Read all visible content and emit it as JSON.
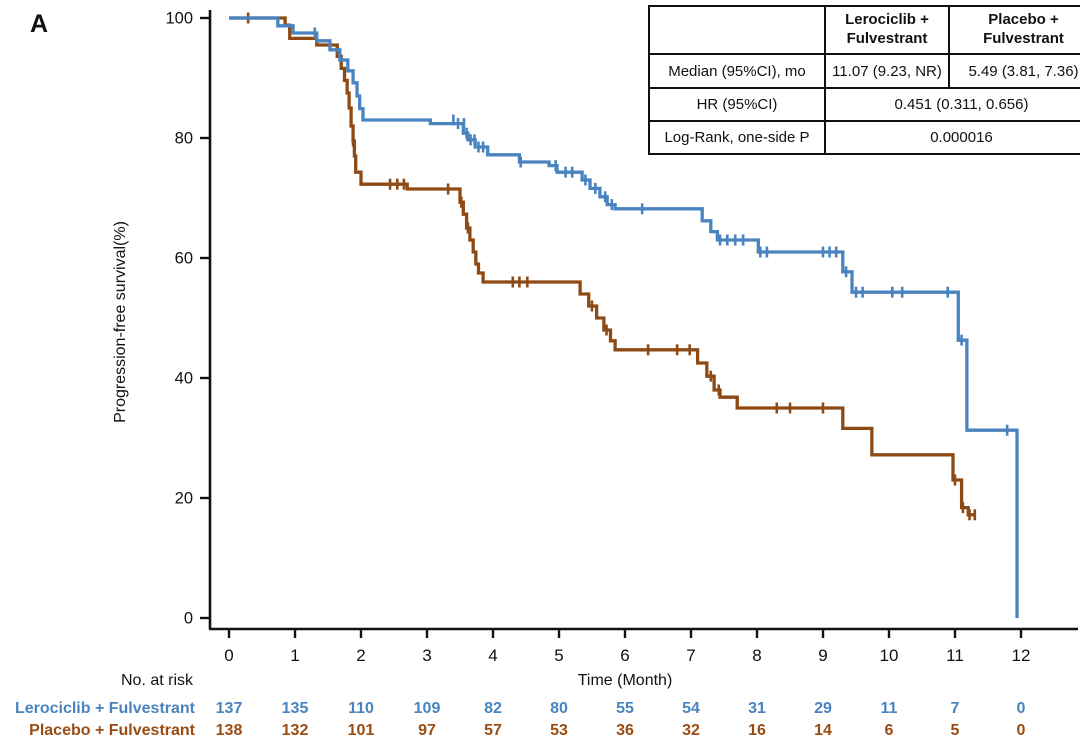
{
  "panel_label": "A",
  "colors": {
    "lerociclib_blue": "#4a84c0",
    "placebo_brown": "#8e4a15",
    "axis_black": "#111111"
  },
  "stats_table": {
    "header": {
      "blank": "",
      "col1": "Lerociclib +\nFulvestrant",
      "col2": "Placebo +\nFulvestrant"
    },
    "median_row": {
      "label": "Median (95%CI), mo",
      "lerociclib": "11.07 (9.23, NR)",
      "placebo": "5.49 (3.81, 7.36)"
    },
    "hr_row": {
      "label": "HR (95%CI)",
      "value": "0.451 (0.311, 0.656)"
    },
    "logrank_row": {
      "label": "Log-Rank, one-side P",
      "value": "0.000016"
    }
  },
  "chart_data": {
    "type": "line",
    "subtype": "kaplan-meier-step",
    "title": "",
    "xlabel": "Time (Month)",
    "ylabel": "Progression-free survival(%)",
    "xlim": [
      0,
      12
    ],
    "ylim": [
      0,
      100
    ],
    "x_ticks": [
      0,
      1,
      2,
      3,
      4,
      5,
      6,
      7,
      8,
      9,
      10,
      11,
      12
    ],
    "y_ticks": [
      0,
      20,
      40,
      60,
      80,
      100
    ],
    "grid": false,
    "legend_position": "none",
    "series": [
      {
        "name": "Placebo + Fulvestrant",
        "color": "#8e4a15",
        "end_month": 11.32,
        "steps": [
          [
            0,
            100
          ],
          [
            0.85,
            98.8
          ],
          [
            0.92,
            96.6
          ],
          [
            1.33,
            95.5
          ],
          [
            1.64,
            93.6
          ],
          [
            1.7,
            91.6
          ],
          [
            1.75,
            89.6
          ],
          [
            1.79,
            87.5
          ],
          [
            1.82,
            85
          ],
          [
            1.85,
            82
          ],
          [
            1.88,
            79.5
          ],
          [
            1.9,
            77
          ],
          [
            1.92,
            74.3
          ],
          [
            2.0,
            72.3
          ],
          [
            2.7,
            71.5
          ],
          [
            3.5,
            69.3
          ],
          [
            3.55,
            67.3
          ],
          [
            3.6,
            65
          ],
          [
            3.65,
            63
          ],
          [
            3.7,
            61
          ],
          [
            3.74,
            59
          ],
          [
            3.78,
            57.5
          ],
          [
            3.85,
            56
          ],
          [
            5.32,
            54
          ],
          [
            5.45,
            52
          ],
          [
            5.57,
            50
          ],
          [
            5.68,
            48
          ],
          [
            5.78,
            46.2
          ],
          [
            5.85,
            44.7
          ],
          [
            7.1,
            42.5
          ],
          [
            7.24,
            40.3
          ],
          [
            7.35,
            38
          ],
          [
            7.44,
            36.8
          ],
          [
            7.7,
            35
          ],
          [
            9.3,
            31.6
          ],
          [
            9.74,
            27.2
          ],
          [
            10.97,
            23
          ],
          [
            11.1,
            18.4
          ],
          [
            11.2,
            17.2
          ]
        ],
        "censors": [
          [
            0.29,
            100
          ],
          [
            1.88,
            79.5
          ],
          [
            2.44,
            72.3
          ],
          [
            2.55,
            72.3
          ],
          [
            2.65,
            72.3
          ],
          [
            3.32,
            71.5
          ],
          [
            3.52,
            69.3
          ],
          [
            3.62,
            65
          ],
          [
            4.3,
            56
          ],
          [
            4.4,
            56
          ],
          [
            4.52,
            56
          ],
          [
            5.5,
            52
          ],
          [
            5.72,
            48
          ],
          [
            6.35,
            44.7
          ],
          [
            6.79,
            44.7
          ],
          [
            6.98,
            44.7
          ],
          [
            7.3,
            40.3
          ],
          [
            7.42,
            38
          ],
          [
            8.3,
            35
          ],
          [
            8.5,
            35
          ],
          [
            9.0,
            35
          ],
          [
            11.0,
            23
          ],
          [
            11.12,
            18.4
          ],
          [
            11.22,
            17.2
          ],
          [
            11.3,
            17.2
          ]
        ]
      },
      {
        "name": "Lerociclib + Fulvestrant",
        "color": "#4a84c0",
        "end_month": 11.94,
        "steps": [
          [
            0,
            100
          ],
          [
            0.74,
            98.7
          ],
          [
            0.97,
            97.5
          ],
          [
            1.33,
            96.2
          ],
          [
            1.53,
            94.7
          ],
          [
            1.68,
            93
          ],
          [
            1.8,
            91.2
          ],
          [
            1.88,
            89.2
          ],
          [
            1.94,
            87
          ],
          [
            1.98,
            84.9
          ],
          [
            2.03,
            83
          ],
          [
            3.05,
            82.4
          ],
          [
            3.55,
            80.8
          ],
          [
            3.62,
            79.7
          ],
          [
            3.73,
            78.5
          ],
          [
            3.92,
            77.2
          ],
          [
            4.4,
            76
          ],
          [
            4.85,
            75.4
          ],
          [
            4.97,
            74.3
          ],
          [
            5.35,
            73
          ],
          [
            5.47,
            71.6
          ],
          [
            5.62,
            70.2
          ],
          [
            5.73,
            68.9
          ],
          [
            5.85,
            68.2
          ],
          [
            7.17,
            66.2
          ],
          [
            7.3,
            64.4
          ],
          [
            7.4,
            63
          ],
          [
            8.02,
            61
          ],
          [
            9.3,
            57.7
          ],
          [
            9.44,
            54.3
          ],
          [
            11.05,
            46.3
          ],
          [
            11.18,
            31.3
          ],
          [
            11.94,
            0
          ]
        ],
        "censors": [
          [
            1.3,
            97.5
          ],
          [
            3.4,
            83
          ],
          [
            3.47,
            82.4
          ],
          [
            3.56,
            82.4
          ],
          [
            3.6,
            80.8
          ],
          [
            3.66,
            79.7
          ],
          [
            3.72,
            79.7
          ],
          [
            3.78,
            78.5
          ],
          [
            3.85,
            78.5
          ],
          [
            4.42,
            76
          ],
          [
            4.95,
            75.4
          ],
          [
            5.1,
            74.3
          ],
          [
            5.2,
            74.3
          ],
          [
            5.4,
            73
          ],
          [
            5.55,
            71.6
          ],
          [
            5.7,
            70.2
          ],
          [
            5.8,
            68.9
          ],
          [
            6.26,
            68.2
          ],
          [
            7.44,
            63
          ],
          [
            7.55,
            63
          ],
          [
            7.67,
            63
          ],
          [
            7.79,
            63
          ],
          [
            8.05,
            61
          ],
          [
            8.15,
            61
          ],
          [
            9.0,
            61
          ],
          [
            9.1,
            61
          ],
          [
            9.2,
            61
          ],
          [
            9.35,
            57.7
          ],
          [
            9.5,
            54.3
          ],
          [
            9.6,
            54.3
          ],
          [
            10.05,
            54.3
          ],
          [
            10.2,
            54.3
          ],
          [
            10.89,
            54.3
          ],
          [
            11.1,
            46.3
          ],
          [
            11.79,
            31.3
          ]
        ]
      }
    ]
  },
  "risk_table": {
    "title": "No. at risk",
    "rows": [
      {
        "name": "Lerociclib + Fulvestrant",
        "color": "#4a84c0",
        "counts": [
          137,
          135,
          110,
          109,
          82,
          80,
          55,
          54,
          31,
          29,
          11,
          7,
          0
        ]
      },
      {
        "name": "Placebo + Fulvestrant",
        "color": "#9b4c13",
        "counts": [
          138,
          132,
          101,
          97,
          57,
          53,
          36,
          32,
          16,
          14,
          6,
          5,
          0
        ]
      }
    ]
  }
}
